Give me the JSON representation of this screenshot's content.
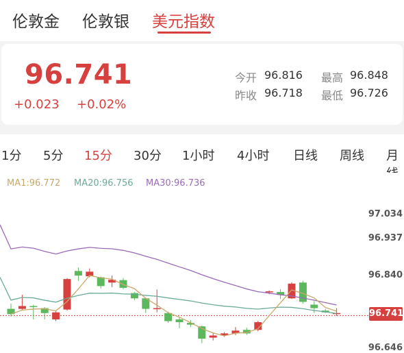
{
  "tabs": [
    {
      "label": "伦敦金",
      "active": false
    },
    {
      "label": "伦敦银",
      "active": false
    },
    {
      "label": "美元指数",
      "active": true
    }
  ],
  "quote": {
    "price": "96.741",
    "change": "+0.023",
    "change_pct": "+0.02%",
    "open_label": "今开",
    "open": "96.816",
    "high_label": "最高",
    "high": "96.848",
    "prev_close_label": "昨收",
    "prev_close": "96.718",
    "low_label": "最低",
    "low": "96.726"
  },
  "periods": [
    {
      "label": "1分",
      "active": false
    },
    {
      "label": "5分",
      "active": false
    },
    {
      "label": "15分",
      "active": true
    },
    {
      "label": "30分",
      "active": false
    },
    {
      "label": "1小时",
      "active": false
    },
    {
      "label": "4小时",
      "active": false
    },
    {
      "label": "日线",
      "active": false
    },
    {
      "label": "周线",
      "active": false
    },
    {
      "label": "月线",
      "active": false
    }
  ],
  "ma": {
    "ma1": "MA1:96.772",
    "ma20": "MA20:96.756",
    "ma30": "MA30:96.736"
  },
  "colors": {
    "up": "#d6403f",
    "down": "#5cb85c",
    "ma1": "#c9a86a",
    "ma20": "#6aaa9a",
    "ma30": "#9a6ab8"
  },
  "chart_data": {
    "type": "candlestick",
    "y_ticks": [
      "97.034",
      "96.937",
      "96.840",
      "96.741",
      "96.646"
    ],
    "last_price": "96.741",
    "ylim": [
      96.64,
      97.07
    ],
    "candles": [
      {
        "o": 96.76,
        "c": 96.745,
        "h": 96.775,
        "l": 96.738
      },
      {
        "o": 96.76,
        "c": 96.768,
        "h": 96.8,
        "l": 96.755
      },
      {
        "o": 96.768,
        "c": 96.765,
        "h": 96.772,
        "l": 96.73
      },
      {
        "o": 96.762,
        "c": 96.748,
        "h": 96.765,
        "l": 96.73
      },
      {
        "o": 96.73,
        "c": 96.75,
        "h": 96.755,
        "l": 96.725
      },
      {
        "o": 96.758,
        "c": 96.845,
        "h": 96.848,
        "l": 96.755
      },
      {
        "o": 96.868,
        "c": 96.855,
        "h": 96.878,
        "l": 96.84
      },
      {
        "o": 96.853,
        "c": 96.866,
        "h": 96.875,
        "l": 96.85
      },
      {
        "o": 96.85,
        "c": 96.825,
        "h": 96.852,
        "l": 96.818
      },
      {
        "o": 96.835,
        "c": 96.843,
        "h": 96.855,
        "l": 96.822
      },
      {
        "o": 96.842,
        "c": 96.82,
        "h": 96.848,
        "l": 96.816
      },
      {
        "o": 96.805,
        "c": 96.79,
        "h": 96.808,
        "l": 96.785
      },
      {
        "o": 96.79,
        "c": 96.76,
        "h": 96.792,
        "l": 96.748
      },
      {
        "o": 96.76,
        "c": 96.762,
        "h": 96.815,
        "l": 96.75
      },
      {
        "o": 96.748,
        "c": 96.725,
        "h": 96.752,
        "l": 96.72
      },
      {
        "o": 96.73,
        "c": 96.722,
        "h": 96.735,
        "l": 96.705
      },
      {
        "o": 96.72,
        "c": 96.715,
        "h": 96.728,
        "l": 96.708
      },
      {
        "o": 96.71,
        "c": 96.675,
        "h": 96.712,
        "l": 96.662
      },
      {
        "o": 96.678,
        "c": 96.684,
        "h": 96.69,
        "l": 96.67
      },
      {
        "o": 96.684,
        "c": 96.69,
        "h": 96.694,
        "l": 96.68
      },
      {
        "o": 96.69,
        "c": 96.698,
        "h": 96.708,
        "l": 96.685
      },
      {
        "o": 96.7,
        "c": 96.69,
        "h": 96.706,
        "l": 96.686
      },
      {
        "o": 96.7,
        "c": 96.722,
        "h": 96.726,
        "l": 96.696
      },
      {
        "o": 96.808,
        "c": 96.81,
        "h": 96.813,
        "l": 96.802
      },
      {
        "o": 96.808,
        "c": 96.8,
        "h": 96.816,
        "l": 96.788
      },
      {
        "o": 96.79,
        "c": 96.832,
        "h": 96.836,
        "l": 96.788
      },
      {
        "o": 96.835,
        "c": 96.78,
        "h": 96.84,
        "l": 96.775
      },
      {
        "o": 96.772,
        "c": 96.762,
        "h": 96.782,
        "l": 96.748
      },
      {
        "o": 96.755,
        "c": 96.75,
        "h": 96.76,
        "l": 96.748
      },
      {
        "o": 96.745,
        "c": 96.748,
        "h": 96.762,
        "l": 96.74
      }
    ]
  }
}
